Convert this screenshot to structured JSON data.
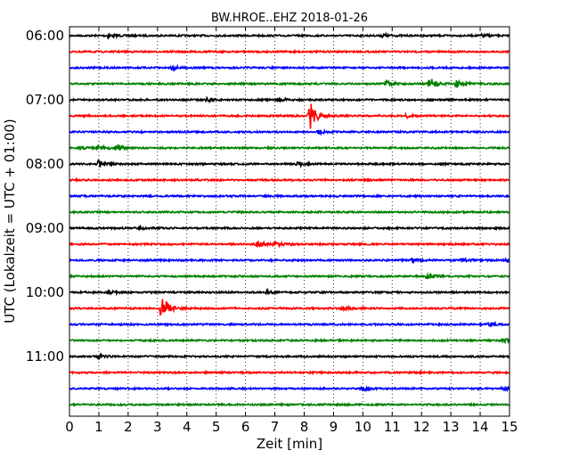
{
  "chart_data": {
    "type": "line",
    "title": "BW.HROE..EHZ 2018-01-26",
    "xlabel": "Zeit  [min]",
    "ylabel": "UTC (Lokalzeit = UTC + 01:00)",
    "xlim": [
      0,
      15
    ],
    "x_ticks": [
      "0",
      "1",
      "2",
      "3",
      "4",
      "5",
      "6",
      "7",
      "8",
      "9",
      "10",
      "11",
      "12",
      "13",
      "14",
      "15"
    ],
    "y_ticks": [
      "06:00",
      "07:00",
      "08:00",
      "09:00",
      "10:00",
      "11:00"
    ],
    "grid": {
      "x": true,
      "y": false,
      "style": "dotted"
    },
    "trace_minutes": 15,
    "series_colors": [
      "#000000",
      "#ff0000",
      "#0000ff",
      "#008000"
    ],
    "traces": [
      {
        "start": "06:00",
        "events": [
          {
            "t": 1.3,
            "amp": 2
          },
          {
            "t": 10.7,
            "amp": 2
          },
          {
            "t": 14.1,
            "amp": 2
          }
        ]
      },
      {
        "start": "06:15",
        "events": []
      },
      {
        "start": "06:30",
        "events": [
          {
            "t": 3.5,
            "amp": 2
          }
        ]
      },
      {
        "start": "06:45",
        "events": [
          {
            "t": 10.8,
            "amp": 3
          },
          {
            "t": 12.3,
            "amp": 6
          },
          {
            "t": 13.2,
            "amp": 4
          }
        ]
      },
      {
        "start": "07:00",
        "events": [
          {
            "t": 4.7,
            "amp": 2
          },
          {
            "t": 7.1,
            "amp": 3
          }
        ]
      },
      {
        "start": "07:15",
        "events": [
          {
            "t": 8.2,
            "amp": 16
          },
          {
            "t": 11.5,
            "amp": 2
          }
        ]
      },
      {
        "start": "07:30",
        "events": [
          {
            "t": 8.5,
            "amp": 2
          }
        ]
      },
      {
        "start": "07:45",
        "events": [
          {
            "t": 0.4,
            "amp": 2
          },
          {
            "t": 1.0,
            "amp": 3
          },
          {
            "t": 1.6,
            "amp": 4
          }
        ]
      },
      {
        "start": "08:00",
        "events": [
          {
            "t": 1.0,
            "amp": 4
          },
          {
            "t": 7.8,
            "amp": 2
          }
        ]
      },
      {
        "start": "08:15",
        "events": []
      },
      {
        "start": "08:30",
        "events": []
      },
      {
        "start": "08:45",
        "events": []
      },
      {
        "start": "09:00",
        "events": [
          {
            "t": 2.4,
            "amp": 2
          }
        ]
      },
      {
        "start": "09:15",
        "events": [
          {
            "t": 6.4,
            "amp": 3
          },
          {
            "t": 7.0,
            "amp": 2
          }
        ]
      },
      {
        "start": "09:30",
        "events": [
          {
            "t": 11.7,
            "amp": 3
          },
          {
            "t": 13.4,
            "amp": 2
          },
          {
            "t": 14.9,
            "amp": 2
          }
        ]
      },
      {
        "start": "09:45",
        "events": [
          {
            "t": 12.2,
            "amp": 3
          }
        ]
      },
      {
        "start": "10:00",
        "events": [
          {
            "t": 1.3,
            "amp": 2
          },
          {
            "t": 6.7,
            "amp": 2
          }
        ]
      },
      {
        "start": "10:15",
        "events": [
          {
            "t": 3.15,
            "amp": 14
          },
          {
            "t": 9.3,
            "amp": 2
          }
        ]
      },
      {
        "start": "10:30",
        "events": [
          {
            "t": 14.3,
            "amp": 2
          }
        ]
      },
      {
        "start": "10:45",
        "events": [
          {
            "t": 14.8,
            "amp": 3
          }
        ]
      },
      {
        "start": "11:00",
        "events": [
          {
            "t": 1.0,
            "amp": 2
          }
        ]
      },
      {
        "start": "11:15",
        "events": []
      },
      {
        "start": "11:30",
        "events": [
          {
            "t": 10.0,
            "amp": 2
          },
          {
            "t": 14.8,
            "amp": 3
          }
        ]
      },
      {
        "start": "11:45",
        "events": []
      }
    ]
  }
}
